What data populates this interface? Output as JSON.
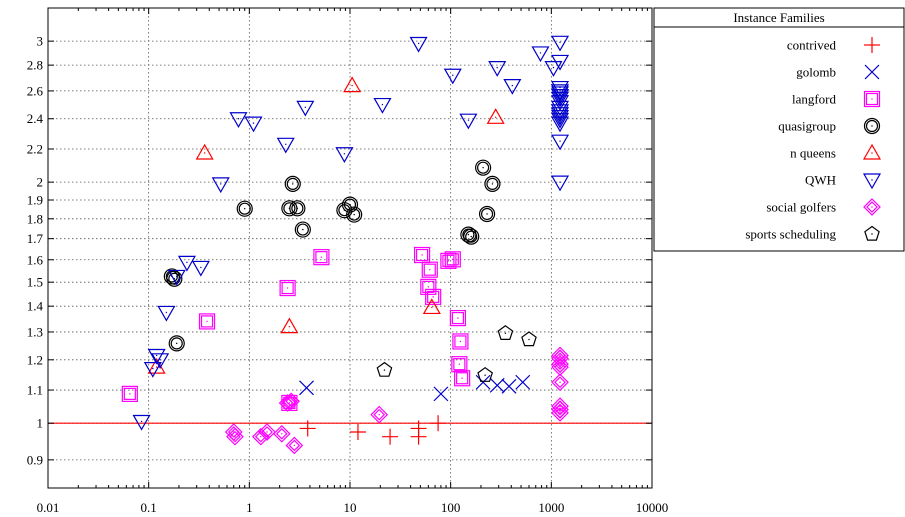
{
  "chart_data": {
    "type": "scatter",
    "x_scale": "log",
    "y_scale": "log",
    "xlim": [
      0.01,
      10000
    ],
    "ylim": [
      0.83,
      3.3
    ],
    "x_ticks": [
      "0.01",
      "0.1",
      "1",
      "10",
      "100",
      "1000",
      "10000"
    ],
    "x_tick_values": [
      0.01,
      0.1,
      1,
      10,
      100,
      1000,
      10000
    ],
    "y_ticks": [
      "0.9",
      "1",
      "1.1",
      "1.2",
      "1.3",
      "1.4",
      "1.5",
      "1.6",
      "1.7",
      "1.8",
      "1.9",
      "2",
      "2.2",
      "2.4",
      "2.6",
      "2.8",
      "3"
    ],
    "y_tick_values": [
      0.9,
      1,
      1.1,
      1.2,
      1.3,
      1.4,
      1.5,
      1.6,
      1.7,
      1.8,
      1.9,
      2,
      2.2,
      2.4,
      2.6,
      2.8,
      3
    ],
    "grid": true,
    "reference_line": {
      "y": 1,
      "color": "#ff0000"
    },
    "legend": {
      "title": "Instance Families",
      "placement": "outside-right"
    },
    "series": [
      {
        "name": "contrived",
        "marker": "plus",
        "color": "#ff0000",
        "points": [
          [
            3.8,
            0.985
          ],
          [
            12,
            0.975
          ],
          [
            25,
            0.962
          ],
          [
            48,
            0.985
          ],
          [
            48,
            0.962
          ],
          [
            75,
            1.0
          ]
        ]
      },
      {
        "name": "golomb",
        "marker": "x",
        "color": "#0000cc",
        "points": [
          [
            3.7,
            1.107
          ],
          [
            80,
            1.088
          ],
          [
            210,
            1.125
          ],
          [
            290,
            1.115
          ],
          [
            380,
            1.112
          ],
          [
            520,
            1.125
          ]
        ]
      },
      {
        "name": "langford",
        "marker": "square",
        "color": "#ff00ff",
        "points": [
          [
            0.065,
            1.088
          ],
          [
            0.38,
            1.34
          ],
          [
            2.4,
            1.475
          ],
          [
            2.5,
            1.06
          ],
          [
            5.2,
            1.612
          ],
          [
            52,
            1.622
          ],
          [
            60,
            1.48
          ],
          [
            62,
            1.555
          ],
          [
            67,
            1.438
          ],
          [
            95,
            1.595
          ],
          [
            105,
            1.602
          ],
          [
            118,
            1.353
          ],
          [
            125,
            1.265
          ],
          [
            122,
            1.185
          ],
          [
            130,
            1.138
          ]
        ]
      },
      {
        "name": "quasigroup",
        "marker": "circle",
        "color": "#000000",
        "points": [
          [
            0.17,
            1.525
          ],
          [
            0.18,
            1.515
          ],
          [
            0.19,
            1.258
          ],
          [
            0.9,
            1.853
          ],
          [
            2.5,
            1.855
          ],
          [
            2.7,
            1.99
          ],
          [
            3.0,
            1.855
          ],
          [
            3.4,
            1.745
          ],
          [
            8.8,
            1.845
          ],
          [
            10,
            1.875
          ],
          [
            11,
            1.822
          ],
          [
            150,
            1.72
          ],
          [
            160,
            1.71
          ],
          [
            210,
            2.085
          ],
          [
            230,
            1.825
          ],
          [
            260,
            1.99
          ]
        ]
      },
      {
        "name": "n queens",
        "marker": "triangle-up",
        "color": "#ff0000",
        "points": [
          [
            0.12,
            1.175
          ],
          [
            0.36,
            2.175
          ],
          [
            2.5,
            1.32
          ],
          [
            10.5,
            2.64
          ],
          [
            65,
            1.395
          ],
          [
            280,
            2.41
          ]
        ]
      },
      {
        "name": "QWH",
        "marker": "triangle-down",
        "color": "#0000cc",
        "points": [
          [
            0.085,
            1.005
          ],
          [
            0.11,
            1.17
          ],
          [
            0.12,
            1.215
          ],
          [
            0.13,
            1.2
          ],
          [
            0.15,
            1.375
          ],
          [
            0.19,
            1.525
          ],
          [
            0.24,
            1.588
          ],
          [
            0.33,
            1.565
          ],
          [
            0.52,
            1.99
          ],
          [
            0.78,
            2.4
          ],
          [
            1.1,
            2.37
          ],
          [
            2.3,
            2.23
          ],
          [
            3.6,
            2.48
          ],
          [
            8.8,
            2.17
          ],
          [
            21,
            2.5
          ],
          [
            48,
            2.98
          ],
          [
            105,
            2.72
          ],
          [
            150,
            2.39
          ],
          [
            290,
            2.78
          ],
          [
            410,
            2.64
          ],
          [
            780,
            2.9
          ],
          [
            1050,
            2.78
          ],
          [
            1220,
            2.99
          ],
          [
            1220,
            2.83
          ],
          [
            1220,
            2.625
          ],
          [
            1220,
            2.6
          ],
          [
            1220,
            2.585
          ],
          [
            1220,
            2.565
          ],
          [
            1220,
            2.545
          ],
          [
            1220,
            2.52
          ],
          [
            1220,
            2.48
          ],
          [
            1220,
            2.455
          ],
          [
            1220,
            2.435
          ],
          [
            1220,
            2.415
          ],
          [
            1220,
            2.395
          ],
          [
            1220,
            2.37
          ],
          [
            1220,
            2.25
          ],
          [
            1220,
            2.0
          ]
        ]
      },
      {
        "name": "social golfers",
        "marker": "diamond",
        "color": "#ff00ff",
        "points": [
          [
            0.7,
            0.975
          ],
          [
            0.72,
            0.962
          ],
          [
            1.3,
            0.962
          ],
          [
            1.5,
            0.975
          ],
          [
            2.1,
            0.97
          ],
          [
            2.4,
            1.06
          ],
          [
            2.6,
            1.065
          ],
          [
            2.8,
            0.938
          ],
          [
            19.5,
            1.025
          ],
          [
            1220,
            1.215
          ],
          [
            1220,
            1.205
          ],
          [
            1220,
            1.185
          ],
          [
            1220,
            1.175
          ],
          [
            1220,
            1.125
          ],
          [
            1220,
            1.05
          ],
          [
            1220,
            1.04
          ],
          [
            1220,
            1.03
          ]
        ]
      },
      {
        "name": "sports scheduling",
        "marker": "pentagon",
        "color": "#000000",
        "points": [
          [
            22,
            1.165
          ],
          [
            220,
            1.148
          ],
          [
            350,
            1.295
          ],
          [
            600,
            1.272
          ]
        ]
      }
    ]
  }
}
